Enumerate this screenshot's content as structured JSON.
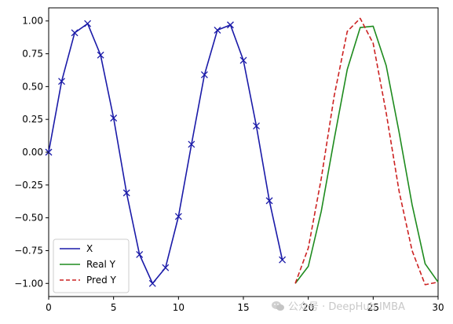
{
  "chart_data": {
    "type": "line",
    "title": "",
    "xlabel": "",
    "ylabel": "",
    "xlim": [
      0,
      30
    ],
    "ylim": [
      -1.1,
      1.1
    ],
    "xticks": [
      0,
      5,
      10,
      15,
      20,
      25,
      30
    ],
    "yticks": [
      -1.0,
      -0.75,
      -0.5,
      -0.25,
      0.0,
      0.25,
      0.5,
      0.75,
      1.0
    ],
    "xtick_labels": [
      "0",
      "5",
      "10",
      "15",
      "20",
      "25",
      "30"
    ],
    "ytick_labels": [
      "−1.00",
      "−0.75",
      "−0.50",
      "−0.25",
      "0.00",
      "0.25",
      "0.50",
      "0.75",
      "1.00"
    ],
    "grid": false,
    "legend_position": "lower-left",
    "series": [
      {
        "name": "X",
        "color": "#1a1aa8",
        "style": "solid",
        "marker": "x",
        "x": [
          0,
          1,
          2,
          3,
          4,
          5,
          6,
          7,
          8,
          9,
          10,
          11,
          12,
          13,
          14,
          15,
          16,
          17,
          18
        ],
        "y": [
          0.0,
          0.54,
          0.91,
          0.98,
          0.74,
          0.26,
          -0.31,
          -0.78,
          -1.0,
          -0.88,
          -0.49,
          0.06,
          0.59,
          0.93,
          0.97,
          0.7,
          0.2,
          -0.37,
          -0.82
        ]
      },
      {
        "name": "Real Y",
        "color": "#1e8b1e",
        "style": "solid",
        "marker": "none",
        "x": [
          19,
          20,
          21,
          22,
          23,
          24,
          25,
          26,
          27,
          28,
          29,
          30
        ],
        "y": [
          -1.0,
          -0.87,
          -0.45,
          0.1,
          0.63,
          0.95,
          0.96,
          0.66,
          0.15,
          -0.4,
          -0.85,
          -0.99
        ]
      },
      {
        "name": "Pred Y",
        "color": "#cc2222",
        "style": "dashed",
        "marker": "none",
        "x": [
          19,
          20,
          21,
          22,
          23,
          24,
          25,
          26,
          27,
          28,
          29,
          30
        ],
        "y": [
          -1.0,
          -0.73,
          -0.2,
          0.43,
          0.92,
          1.02,
          0.83,
          0.3,
          -0.3,
          -0.75,
          -1.01,
          -0.99
        ]
      }
    ]
  },
  "watermark": {
    "text": "公众号 · DeepHub IMBA"
  }
}
